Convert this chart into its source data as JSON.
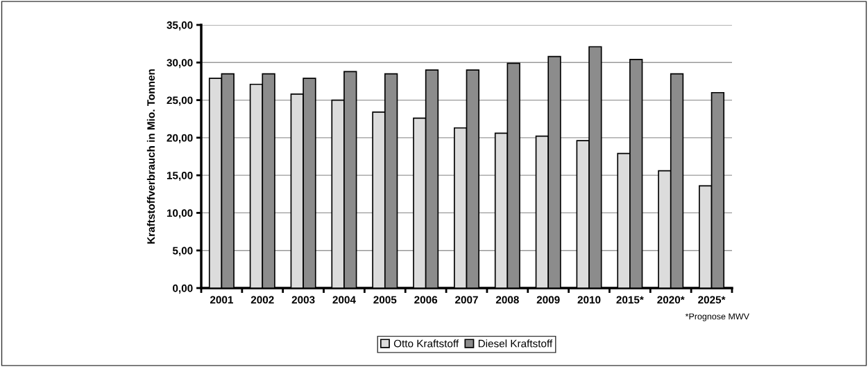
{
  "chart_data": {
    "type": "bar",
    "ylabel": "Kraftstoffverbrauch in Mio. Tonnen",
    "categories": [
      "2001",
      "2002",
      "2003",
      "2004",
      "2005",
      "2006",
      "2007",
      "2008",
      "2009",
      "2010",
      "2015*",
      "2020*",
      "2025*"
    ],
    "series": [
      {
        "name": "Otto Kraftstoff",
        "color": "#dcdcdc",
        "values": [
          27.9,
          27.1,
          25.8,
          25.0,
          23.4,
          22.6,
          21.3,
          20.6,
          20.2,
          19.6,
          17.9,
          15.6,
          13.6
        ]
      },
      {
        "name": "Diesel Kraftstoff",
        "color": "#8c8c8c",
        "values": [
          28.5,
          28.5,
          27.9,
          28.8,
          28.5,
          29.0,
          29.0,
          29.9,
          30.8,
          32.1,
          30.4,
          28.5,
          26.0
        ]
      }
    ],
    "ylim": [
      0,
      35
    ],
    "yticks": [
      {
        "value": 0,
        "label": "0,00"
      },
      {
        "value": 5,
        "label": "5,00"
      },
      {
        "value": 10,
        "label": "10,00"
      },
      {
        "value": 15,
        "label": "15,00"
      },
      {
        "value": 20,
        "label": "20,00"
      },
      {
        "value": 25,
        "label": "25,00"
      },
      {
        "value": 30,
        "label": "30,00"
      },
      {
        "value": 35,
        "label": "35,00"
      }
    ],
    "grid": "y",
    "legend": "bottom",
    "annotations": [
      "*Prognose MWV"
    ]
  }
}
